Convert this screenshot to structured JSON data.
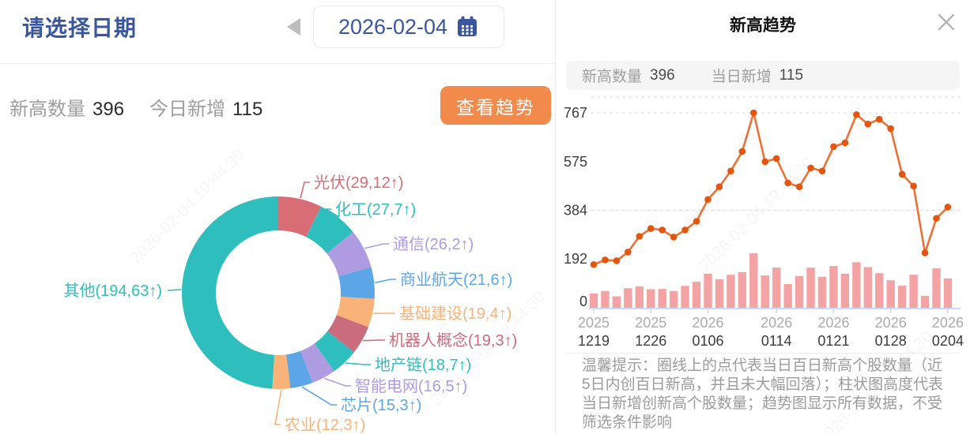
{
  "watermark": {
    "text": "2026-02-04 19:44:30"
  },
  "left_panel": {
    "title": "请选择日期",
    "date_value": "2026-02-04",
    "stats": {
      "new_high_label": "新高数量",
      "new_high_value": "396",
      "today_new_label": "今日新增",
      "today_new_value": "115"
    },
    "view_trend_button": "查看趋势"
  },
  "right_panel": {
    "title": "新高趋势",
    "stats": {
      "new_high_label": "新高数量",
      "new_high_value": "396",
      "today_new_label": "当日新增",
      "today_new_value": "115"
    },
    "footnote": "温馨提示：圈线上的点代表当日百日新高个股数量（近5日内创百日新高，并且未大幅回落）；柱状图高度代表当日新增创新高个股数量；趋势图显示所有数据，不受筛选条件影响"
  },
  "chart_data": [
    {
      "id": "sector-donut",
      "type": "pie",
      "total": 396,
      "legend_position": "callout-labels",
      "segments": [
        {
          "label": "光伏",
          "value": 29,
          "new_up": 12,
          "display": "光伏(29,12↑)",
          "color": "#D96D75"
        },
        {
          "label": "化工",
          "value": 27,
          "new_up": 7,
          "display": "化工(27,7↑)",
          "color": "#2EBEBE"
        },
        {
          "label": "通信",
          "value": 26,
          "new_up": 2,
          "display": "通信(26,2↑)",
          "color": "#AE9BE0"
        },
        {
          "label": "商业航天",
          "value": 21,
          "new_up": 6,
          "display": "商业航天(21,6↑)",
          "color": "#5CA6E8"
        },
        {
          "label": "基础建设",
          "value": 19,
          "new_up": 4,
          "display": "基础建设(19,4↑)",
          "color": "#F9B277"
        },
        {
          "label": "机器人概念",
          "value": 19,
          "new_up": 3,
          "display": "机器人概念(19,3↑)",
          "color": "#CB6B7E"
        },
        {
          "label": "地产链",
          "value": 18,
          "new_up": 7,
          "display": "地产链(18,7↑)",
          "color": "#2EBEBE"
        },
        {
          "label": "智能电网",
          "value": 16,
          "new_up": 5,
          "display": "智能电网(16,5↑)",
          "color": "#AE9BE0"
        },
        {
          "label": "芯片",
          "value": 15,
          "new_up": 3,
          "display": "芯片(15,3↑)",
          "color": "#5CA6E8"
        },
        {
          "label": "农业",
          "value": 12,
          "new_up": 3,
          "display": "农业(12,3↑)",
          "color": "#F9B277"
        },
        {
          "label": "其他",
          "value": 194,
          "new_up": 63,
          "display": "其他(194,63↑)",
          "color": "#2EBEBE"
        }
      ]
    },
    {
      "id": "new-high-trend",
      "type": "line+bar",
      "y_ticks": [
        0,
        192,
        384,
        575,
        767
      ],
      "ylim": [
        0,
        830
      ],
      "grid_dashed_at": [
        767,
        384
      ],
      "x_labels": [
        {
          "index": 0,
          "year": "2025",
          "date": "1219"
        },
        {
          "index": 5,
          "year": "2025",
          "date": "1226"
        },
        {
          "index": 10,
          "year": "2026",
          "date": "0106"
        },
        {
          "index": 16,
          "year": "2026",
          "date": "0114"
        },
        {
          "index": 21,
          "year": "2026",
          "date": "0121"
        },
        {
          "index": 26,
          "year": "2026",
          "date": "0128"
        },
        {
          "index": 31,
          "year": "2026",
          "date": "0204"
        }
      ],
      "line_series": {
        "name": "当日百日新高个股数量",
        "color": "#EE7035",
        "point_color": "#E4560E",
        "values": [
          170,
          188,
          185,
          219,
          281,
          312,
          306,
          278,
          306,
          340,
          426,
          476,
          538,
          615,
          767,
          575,
          587,
          491,
          476,
          550,
          538,
          634,
          649,
          760,
          723,
          742,
          705,
          525,
          479,
          216,
          352,
          396
        ]
      },
      "bar_series": {
        "name": "当日新增创新高个股数量",
        "color": "#F3A3A4",
        "values": [
          56,
          66,
          45,
          77,
          84,
          73,
          74,
          66,
          86,
          102,
          134,
          112,
          130,
          140,
          215,
          127,
          158,
          93,
          125,
          158,
          122,
          164,
          134,
          179,
          160,
          136,
          108,
          87,
          130,
          47,
          155,
          115
        ]
      }
    }
  ]
}
